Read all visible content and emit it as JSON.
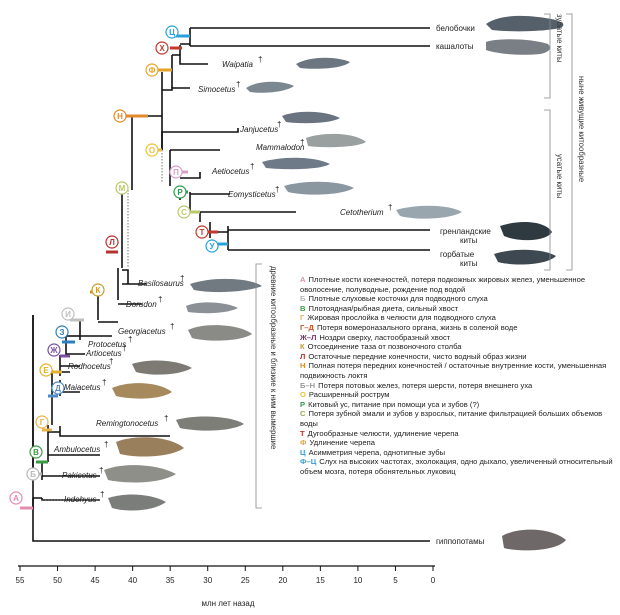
{
  "taxa": {
    "belobochki": "белобочки",
    "kashaloty": "кашалоты",
    "waipatia": "Waipatia",
    "simocetus": "Simocetus",
    "janjucetus": "Janjucetus",
    "mammalodon": "Mammalodon",
    "aetiocetus": "Aetiocetus",
    "eomysticetus": "Eomysticetus",
    "cetotherium": "Cetotherium",
    "greenland_1": "гренландские",
    "greenland_2": "киты",
    "humpback_1": "горбатые",
    "humpback_2": "киты",
    "basilosaurus": "Basilosaurus",
    "dorudon": "Dorudon",
    "georgiacetus": "Georgiacetus",
    "protocetus": "Protocetus",
    "artiocetus": "Artiocetus",
    "rodhocetus": "Rodhocetus",
    "maiacetus": "Maiacetus",
    "remingtonocetus": "Remingtonocetus",
    "ambulocetus": "Ambulocetus",
    "pakicetus": "Pakicetus",
    "indohyus": "Indohyus",
    "hippos": "гиппопотамы",
    "dagger": "†"
  },
  "groups": {
    "toothed": "зубатые киты",
    "baleen": "усатые киты",
    "living": "ныне живущие китообразные",
    "ancient": "древние китообразные и близкие к ним вымершие"
  },
  "nodes": {
    "A": "А",
    "B": "Б",
    "V": "В",
    "G": "Г",
    "D": "Д",
    "E": "Е",
    "Zh": "Ж",
    "Z": "З",
    "I": "И",
    "K": "К",
    "L": "Л",
    "M": "М",
    "N": "Н",
    "O": "О",
    "P": "П",
    "R": "Р",
    "S": "С",
    "T": "Т",
    "U": "У",
    "F": "Ф",
    "Kh": "Х",
    "Ts": "Ц"
  },
  "colors": {
    "A": "#e48bb0",
    "B": "#b7b7b7",
    "V": "#3a9a44",
    "G": "#e8b24a",
    "D": "#4d8bc9",
    "E": "#e2b02a",
    "Zh": "#7a4fa0",
    "Z": "#2f7fbf",
    "I": "#c0c0c0",
    "K": "#c79b2b",
    "L": "#b8312f",
    "M": "#b9c86a",
    "N": "#e08a2a",
    "O": "#e8c23a",
    "P": "#d9a0c8",
    "R": "#2c9a4c",
    "S": "#b9c86a",
    "T": "#c0392b",
    "U": "#2aa0d8",
    "F": "#e3a32a",
    "Kh": "#c0392b",
    "Ts": "#2aa0d8"
  },
  "legend": [
    {
      "key": "А",
      "color": "#e48bb0",
      "text": "Плотные кости конечностей, потеря подкожных жировых желез, уменьшенное оволосение, полуводные, рождение под водой"
    },
    {
      "key": "Б",
      "color": "#b7b7b7",
      "text": "Плотные слуховые косточки для подводного слуха"
    },
    {
      "key": "В",
      "color": "#3a9a44",
      "text": "Плотоядная/рыбная диета, сильный хвост"
    },
    {
      "key": "Г",
      "color": "#e8b24a",
      "text": "Жировая прослойка в челюсти для подводного слуха"
    },
    {
      "key": "Г–Д",
      "color": "#d0502a",
      "text": "Потеря вомероназального органа, жизнь в соленой воде"
    },
    {
      "key": "Ж–Л",
      "color": "#7a2f6a",
      "text": "Ноздри сверху, ластообразный хвост"
    },
    {
      "key": "К",
      "color": "#c79b2b",
      "text": "Отсоединение таза от позвоночного столба"
    },
    {
      "key": "Л",
      "color": "#b8312f",
      "text": "Остаточные передние конечности, чисто водный образ жизни"
    },
    {
      "key": "Н",
      "color": "#e08a2a",
      "text": "Полная потеря передних конечностей / остаточные внутренние кости, уменьшенная подвижность локтя"
    },
    {
      "key": "Б–Н",
      "color": "#999999",
      "text": "Потеря потовых желез, потеря шерсти, потеря внешнего уха"
    },
    {
      "key": "О",
      "color": "#e8c23a",
      "text": "Расширенный рострум"
    },
    {
      "key": "Р",
      "color": "#2c9a4c",
      "text": "Китовый ус, питание при помощи уса и зубов (?)"
    },
    {
      "key": "С",
      "color": "#9aa84a",
      "text": "Потеря зубной эмали и зубов у взрослых, питание фильтрацией больших объемов воды"
    },
    {
      "key": "Т",
      "color": "#c0392b",
      "text": "Дугообразные челюсти, удлинение черепа"
    },
    {
      "key": "Ф",
      "color": "#e3a32a",
      "text": "Удлинение черепа"
    },
    {
      "key": "Ц",
      "color": "#2aa0d8",
      "text": "Асимметрия черепа, однотипные зубы"
    },
    {
      "key": "Ф–Ц",
      "color": "#2aa0d8",
      "text": "Слух на высоких частотах, эхолокация, одно дыхало, увеличенный относительный объем мозга, потеря обонятельных луковиц"
    }
  ],
  "axis": {
    "ticks": [
      "55",
      "50",
      "45",
      "40",
      "35",
      "30",
      "25",
      "20",
      "15",
      "10",
      "5",
      "0"
    ],
    "label": "млн лет назад"
  }
}
